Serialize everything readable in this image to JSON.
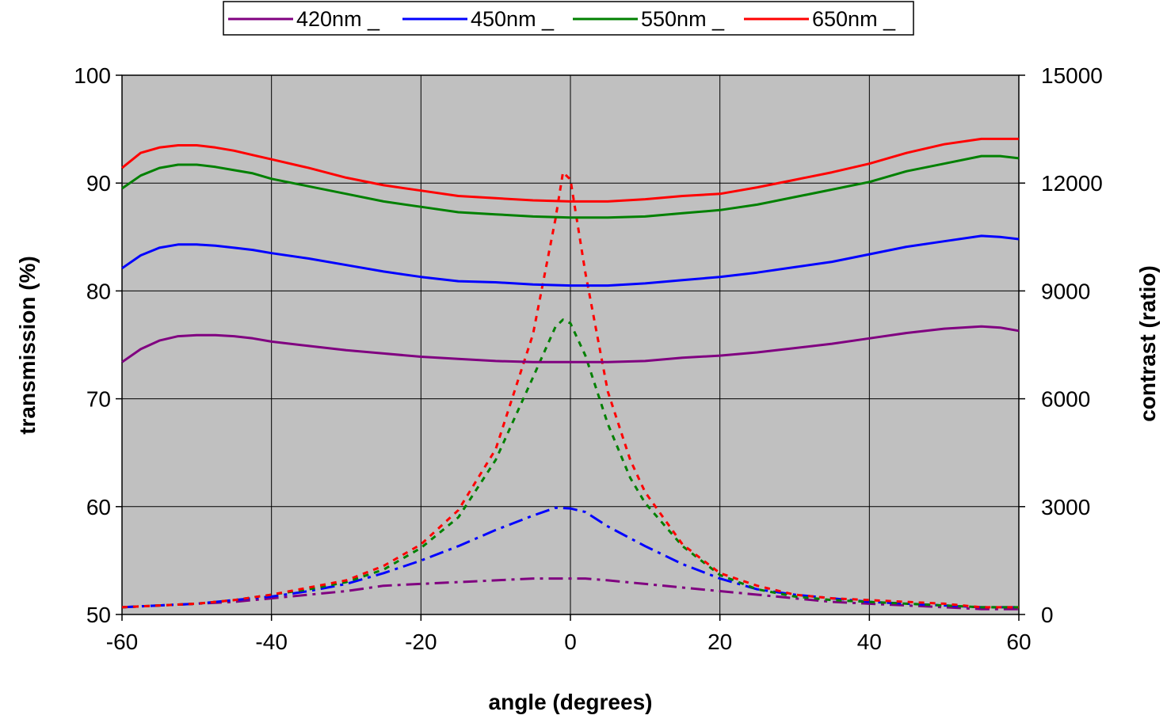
{
  "chart_data": {
    "type": "line",
    "xlabel": "angle (degrees)",
    "ylabel_left": "transmission (%)",
    "ylabel_right": "contrast (ratio)",
    "xlim": [
      -60,
      60
    ],
    "ylim_left": [
      50,
      100
    ],
    "ylim_right": [
      0,
      15000
    ],
    "x_ticks": [
      -60,
      -40,
      -20,
      0,
      20,
      40,
      60
    ],
    "y_left_ticks": [
      50,
      60,
      70,
      80,
      90,
      100
    ],
    "y_right_ticks": [
      0,
      3000,
      6000,
      9000,
      12000,
      15000
    ],
    "grid": true,
    "plot_background": "#c0c0c0",
    "legend_position": "top",
    "legend": [
      "420nm _",
      "450nm _",
      "550nm _",
      "650nm _"
    ],
    "colors": {
      "420nm _": "#800080",
      "450nm _": "#0000ff",
      "550nm _": "#008000",
      "650nm _": "#ff0000"
    },
    "transmission": [
      {
        "name": "420nm _",
        "axis": "left",
        "style": "solid",
        "x": [
          -60,
          -57.5,
          -55,
          -52.5,
          -50,
          -47.5,
          -45,
          -42.5,
          -40,
          -35,
          -30,
          -25,
          -20,
          -15,
          -10,
          -5,
          0,
          5,
          10,
          15,
          20,
          25,
          30,
          35,
          40,
          45,
          50,
          55,
          57.5,
          60
        ],
        "y": [
          73.4,
          74.6,
          75.4,
          75.8,
          75.9,
          75.9,
          75.8,
          75.6,
          75.3,
          74.9,
          74.5,
          74.2,
          73.9,
          73.7,
          73.5,
          73.4,
          73.4,
          73.4,
          73.5,
          73.8,
          74.0,
          74.3,
          74.7,
          75.1,
          75.6,
          76.1,
          76.5,
          76.7,
          76.6,
          76.3
        ]
      },
      {
        "name": "450nm _",
        "axis": "left",
        "style": "solid",
        "x": [
          -60,
          -57.5,
          -55,
          -52.5,
          -50,
          -47.5,
          -45,
          -42.5,
          -40,
          -35,
          -30,
          -25,
          -20,
          -15,
          -10,
          -5,
          0,
          5,
          10,
          15,
          20,
          25,
          30,
          35,
          40,
          45,
          50,
          55,
          57.5,
          60
        ],
        "y": [
          82.1,
          83.3,
          84.0,
          84.3,
          84.3,
          84.2,
          84.0,
          83.8,
          83.5,
          83.0,
          82.4,
          81.8,
          81.3,
          80.9,
          80.8,
          80.6,
          80.5,
          80.5,
          80.7,
          81.0,
          81.3,
          81.7,
          82.2,
          82.7,
          83.4,
          84.1,
          84.6,
          85.1,
          85.0,
          84.8
        ]
      },
      {
        "name": "550nm _",
        "axis": "left",
        "style": "solid",
        "x": [
          -60,
          -57.5,
          -55,
          -52.5,
          -50,
          -47.5,
          -45,
          -42.5,
          -40,
          -35,
          -30,
          -25,
          -20,
          -15,
          -10,
          -5,
          0,
          5,
          10,
          15,
          20,
          25,
          30,
          35,
          40,
          45,
          50,
          55,
          57.5,
          60
        ],
        "y": [
          89.5,
          90.7,
          91.4,
          91.7,
          91.7,
          91.5,
          91.2,
          90.9,
          90.4,
          89.7,
          89.0,
          88.3,
          87.8,
          87.3,
          87.1,
          86.9,
          86.8,
          86.8,
          86.9,
          87.2,
          87.5,
          88.0,
          88.7,
          89.4,
          90.1,
          91.1,
          91.8,
          92.5,
          92.5,
          92.3
        ]
      },
      {
        "name": "650nm _",
        "axis": "left",
        "style": "solid",
        "x": [
          -60,
          -57.5,
          -55,
          -52.5,
          -50,
          -47.5,
          -45,
          -42.5,
          -40,
          -35,
          -30,
          -25,
          -20,
          -15,
          -10,
          -5,
          0,
          5,
          10,
          15,
          20,
          25,
          30,
          35,
          40,
          45,
          50,
          55,
          57.5,
          60
        ],
        "y": [
          91.4,
          92.8,
          93.3,
          93.5,
          93.5,
          93.3,
          93.0,
          92.6,
          92.2,
          91.4,
          90.5,
          89.8,
          89.3,
          88.8,
          88.6,
          88.4,
          88.3,
          88.3,
          88.5,
          88.8,
          89.0,
          89.6,
          90.3,
          91.0,
          91.8,
          92.8,
          93.6,
          94.1,
          94.1,
          94.1
        ]
      }
    ],
    "contrast": [
      {
        "name": "420nm _",
        "axis": "right",
        "style": "dash-dot",
        "x": [
          -60,
          -55,
          -50,
          -45,
          -40,
          -35,
          -30,
          -25,
          -20,
          -15,
          -10,
          -5,
          -2,
          0,
          2,
          5,
          10,
          15,
          20,
          25,
          30,
          35,
          40,
          45,
          50,
          55,
          60
        ],
        "y": [
          200,
          250,
          300,
          350,
          450,
          550,
          650,
          800,
          850,
          900,
          950,
          1000,
          1000,
          1000,
          1000,
          950,
          850,
          750,
          650,
          550,
          450,
          350,
          300,
          250,
          200,
          150,
          150
        ]
      },
      {
        "name": "450nm _",
        "axis": "right",
        "style": "dash-dot",
        "x": [
          -60,
          -55,
          -50,
          -45,
          -40,
          -35,
          -30,
          -25,
          -20,
          -15,
          -10,
          -5,
          -2,
          0,
          2,
          5,
          10,
          15,
          20,
          25,
          30,
          35,
          40,
          45,
          50,
          55,
          60
        ],
        "y": [
          200,
          250,
          300,
          400,
          500,
          650,
          850,
          1150,
          1500,
          1900,
          2350,
          2750,
          2970,
          2950,
          2850,
          2450,
          1900,
          1400,
          1000,
          700,
          550,
          450,
          350,
          300,
          250,
          200,
          200
        ]
      },
      {
        "name": "550nm _",
        "axis": "right",
        "style": "dashed",
        "x": [
          -60,
          -55,
          -50,
          -45,
          -40,
          -35,
          -30,
          -25,
          -20,
          -15,
          -10,
          -5,
          -2,
          -1,
          0,
          2,
          5,
          8,
          10,
          15,
          20,
          25,
          30,
          35,
          40,
          45,
          50,
          55,
          60
        ],
        "y": [
          200,
          250,
          300,
          400,
          550,
          700,
          900,
          1250,
          1850,
          2700,
          4300,
          6600,
          8000,
          8200,
          8100,
          7200,
          5300,
          3800,
          3100,
          1900,
          1100,
          700,
          500,
          400,
          350,
          300,
          250,
          200,
          200
        ]
      },
      {
        "name": "650nm _",
        "axis": "right",
        "style": "dashed",
        "x": [
          -60,
          -55,
          -50,
          -45,
          -40,
          -35,
          -30,
          -25,
          -20,
          -15,
          -10,
          -5,
          -2,
          -1,
          0,
          2,
          5,
          8,
          10,
          15,
          20,
          25,
          30,
          35,
          40,
          45,
          50,
          55,
          60
        ],
        "y": [
          200,
          250,
          300,
          400,
          550,
          750,
          950,
          1350,
          1950,
          2900,
          4600,
          7800,
          11000,
          12300,
          12100,
          9500,
          6200,
          4300,
          3400,
          1950,
          1150,
          800,
          550,
          450,
          400,
          350,
          300,
          200,
          200
        ]
      }
    ]
  }
}
